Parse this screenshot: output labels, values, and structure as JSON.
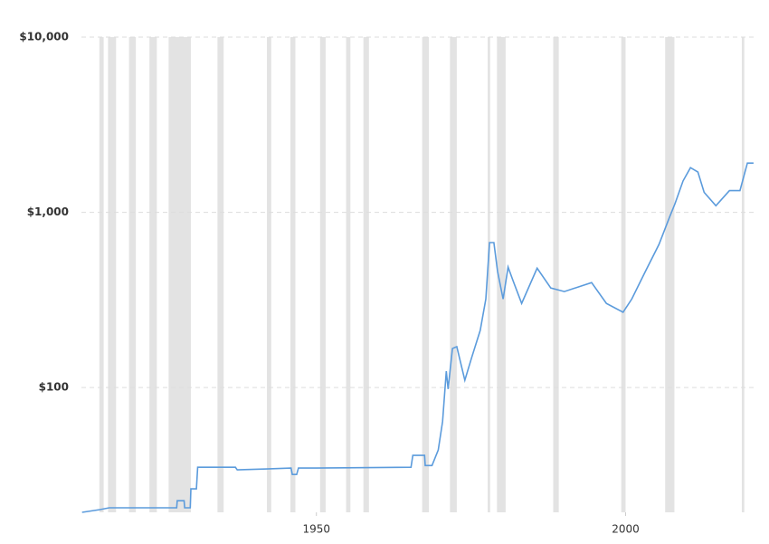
{
  "chart_data": {
    "type": "line",
    "x": [
      1912.1,
      1915,
      1916.5,
      1927.4,
      1927.5,
      1928.6,
      1928.7,
      1929.6,
      1929.7,
      1930.6,
      1930.8,
      1936.9,
      1937.2,
      1942,
      1945.9,
      1946.1,
      1946.8,
      1947.1,
      1950,
      1965.3,
      1965.6,
      1967.5,
      1967.6,
      1968.7,
      1969.7,
      1970.4,
      1971,
      1971.3,
      1972,
      1972.7,
      1974,
      1975.1,
      1976.5,
      1977.4,
      1978,
      1978.7,
      1979.3,
      1980.2,
      1981,
      1981.8,
      1983.2,
      1985.7,
      1987.9,
      1990.1,
      1994.5,
      1996.9,
      1999.6,
      2001,
      2003.2,
      2005.4,
      2007.1,
      2008,
      2009.3,
      2010.5,
      2011.7,
      2012.7,
      2014.6,
      2016.8,
      2018.5,
      2019.7,
      2020.7
    ],
    "values": [
      19.4,
      20.1,
      20.6,
      20.6,
      22.6,
      22.6,
      20.6,
      20.6,
      26.4,
      26.4,
      35.1,
      35.1,
      33.9,
      34.3,
      34.7,
      31.9,
      31.9,
      34.7,
      34.7,
      35.1,
      41,
      41,
      35.9,
      35.9,
      44,
      64,
      124,
      98,
      167,
      171,
      110,
      148,
      212,
      320,
      672,
      672,
      459,
      320,
      487,
      407,
      302,
      480,
      370,
      353,
      397,
      302,
      269,
      320,
      459,
      656,
      936,
      1120,
      1510,
      1800,
      1700,
      1300,
      1090,
      1330,
      1330,
      1910,
      1910
    ],
    "color": "#5b9bdc",
    "shaded_periods": [
      [
        1914.9,
        1915.6
      ],
      [
        1916.3,
        1917.6
      ],
      [
        1919.7,
        1920.8
      ],
      [
        1923.0,
        1924.2
      ],
      [
        1926.1,
        1929.7
      ],
      [
        1934.0,
        1935.0
      ],
      [
        1942.0,
        1942.7
      ],
      [
        1945.8,
        1946.6
      ],
      [
        1950.6,
        1951.5
      ],
      [
        1954.8,
        1955.5
      ],
      [
        1957.6,
        1958.5
      ],
      [
        1967.1,
        1968.2
      ],
      [
        1971.6,
        1972.7
      ],
      [
        1977.7,
        1978.1
      ],
      [
        1979.2,
        1980.6
      ],
      [
        1988.3,
        1989.2
      ],
      [
        1999.3,
        2000.0
      ],
      [
        2006.4,
        2007.9
      ],
      [
        2018.8,
        2019.2
      ]
    ],
    "shade_color": "#e3e3e3",
    "xlim": [
      1912,
      2021
    ],
    "xticks": [
      1950,
      2000
    ],
    "ylim": [
      19.4,
      10000
    ],
    "log_y": true,
    "yticks": [
      {
        "value": 100,
        "label": "$100"
      },
      {
        "value": 1000,
        "label": "$1,000"
      },
      {
        "value": 10000,
        "label": "$10,000"
      }
    ],
    "grid": true
  }
}
